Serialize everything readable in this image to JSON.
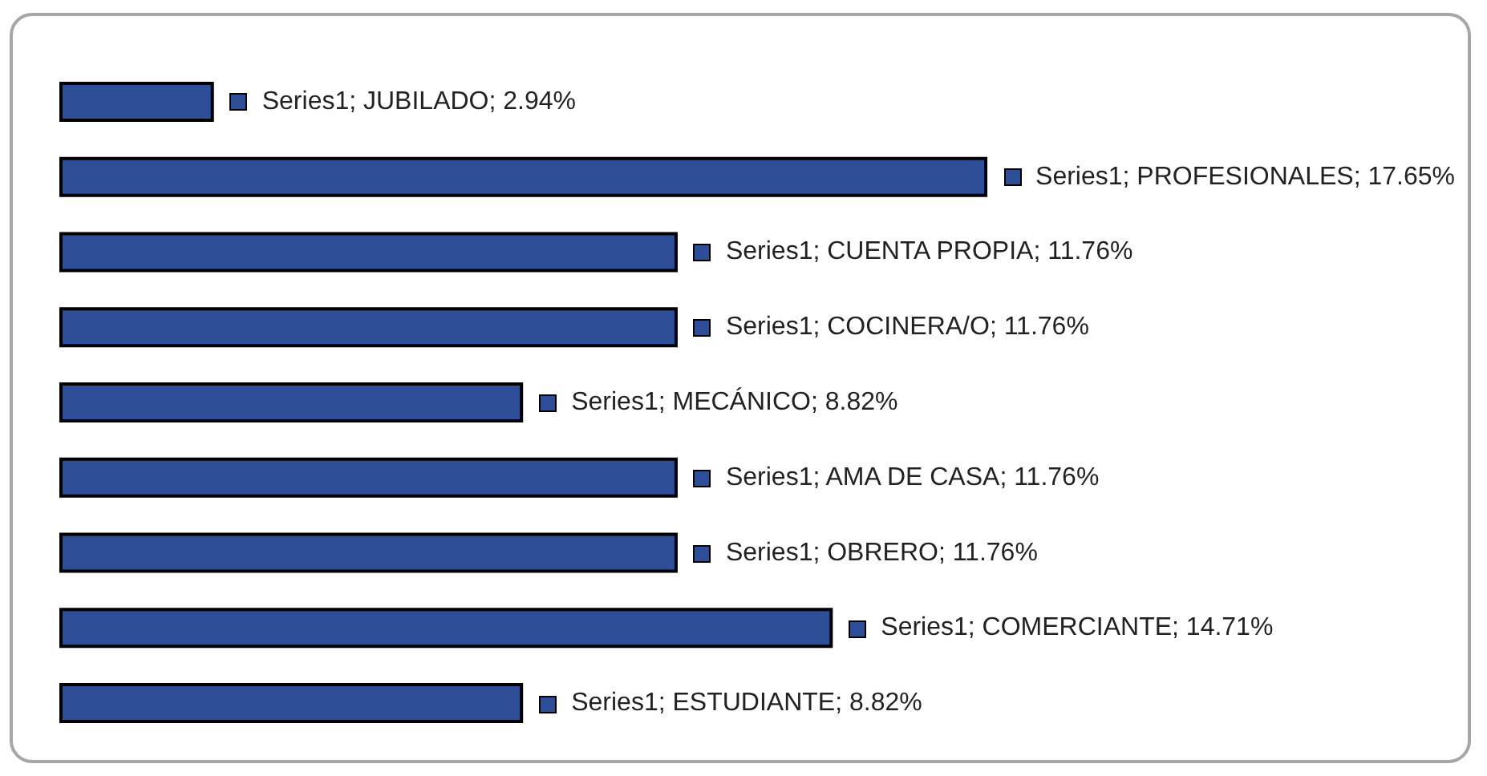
{
  "chart_data": {
    "type": "bar",
    "orientation": "horizontal",
    "categories": [
      null,
      null,
      null,
      null,
      null,
      null,
      null,
      null,
      null
    ],
    "series": [
      {
        "color": "#2e4e98",
        "values": [
          2.94,
          17.65,
          11.76,
          11.76,
          8.82,
          11.76,
          11.76,
          14.71,
          8.82
        ],
        "value_labels": [
          "Series1; JUBILADO; 2.94%",
          "Series1; PROFESIONALES; 17.65%",
          "Series1; CUENTA PROPIA; 11.76%",
          "Series1; COCINERA/O; 11.76%",
          "Series1; MECÁNICO; 8.82%",
          "Series1; AMA DE CASA; 11.76%",
          "Series1; OBRERO; 11.76%",
          "Series1; COMERCIANTE; 14.71%",
          "Series1; ESTUDIANTE; 8.82%"
        ]
      }
    ]
  }
}
